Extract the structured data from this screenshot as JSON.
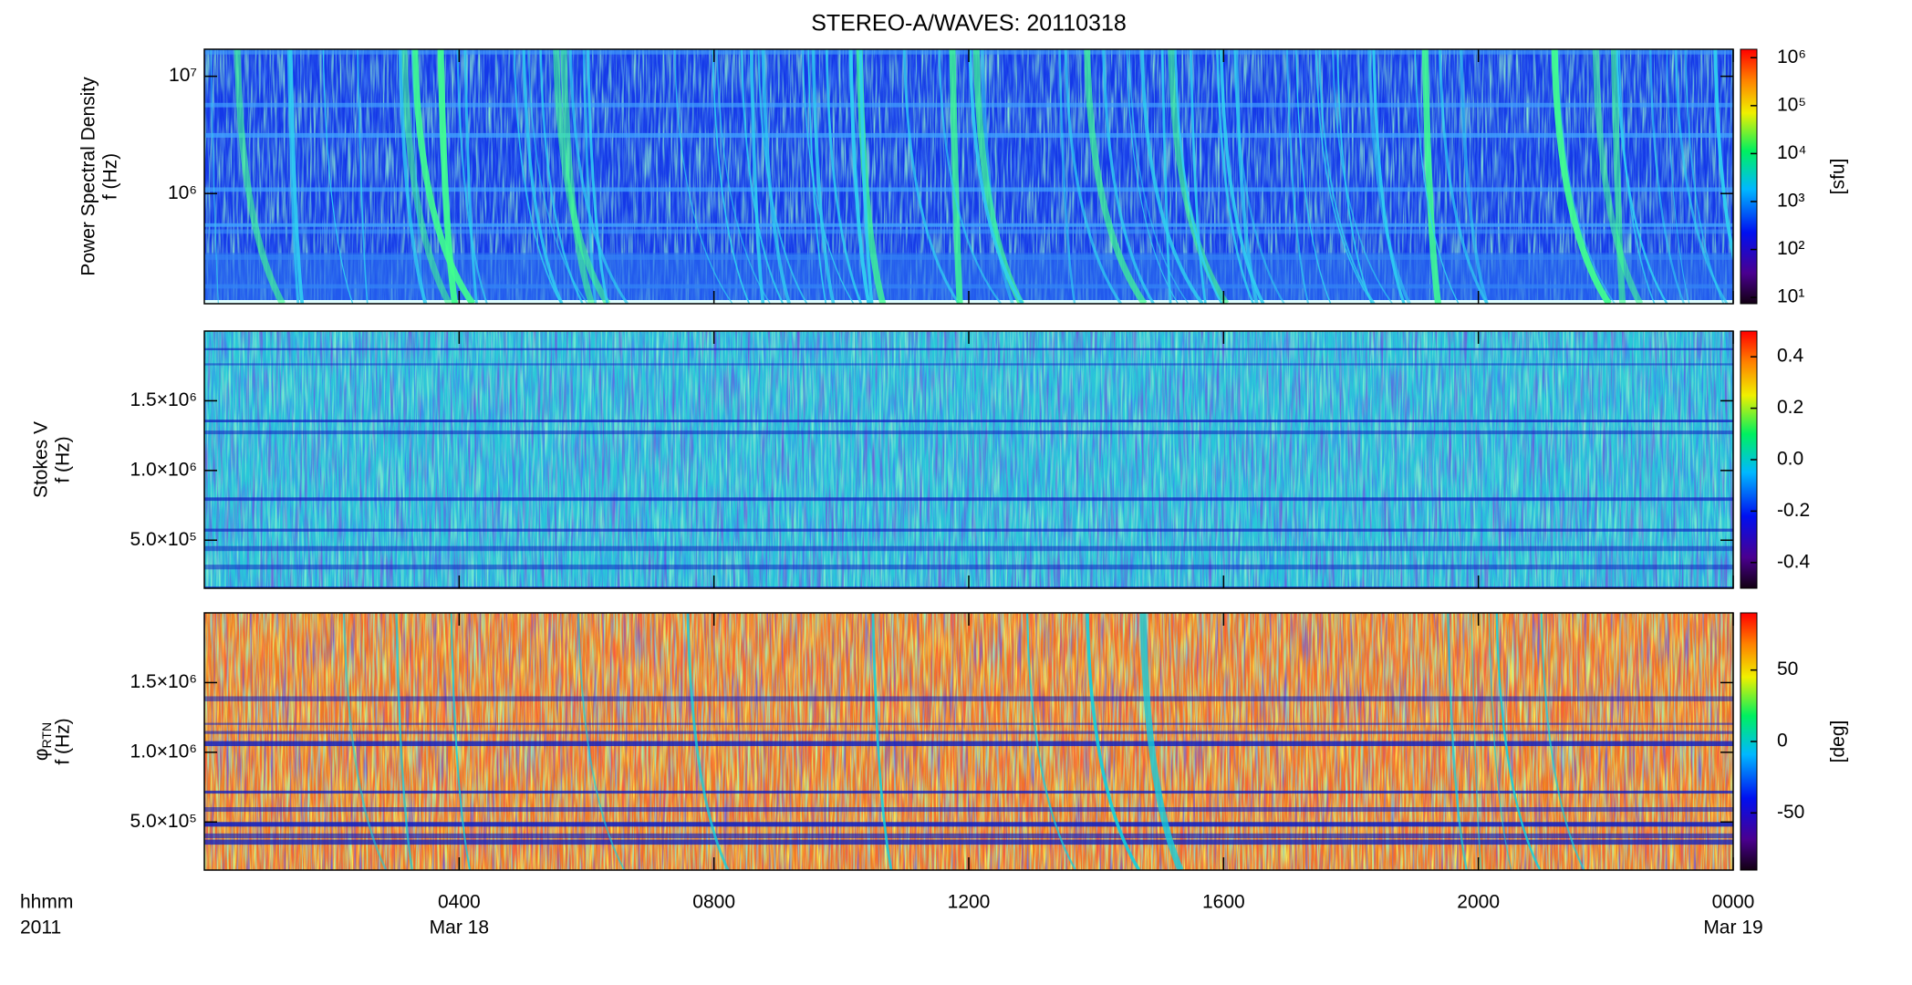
{
  "chart_data": {
    "type": "heatmap_stack",
    "title": "STEREO-A/WAVES: 20110318",
    "xlim": [
      0,
      24
    ],
    "xticks": [
      {
        "value": 4,
        "label": "0400"
      },
      {
        "value": 8,
        "label": "0800"
      },
      {
        "value": 12,
        "label": "1200"
      },
      {
        "value": 16,
        "label": "1600"
      },
      {
        "value": 20,
        "label": "2000"
      },
      {
        "value": 24,
        "label": "0000"
      }
    ],
    "date_ticks": [
      {
        "value": 4,
        "label": "Mar 18"
      },
      {
        "value": 24,
        "label": "Mar 19"
      }
    ],
    "x_format_label": "hhmm",
    "year_label": "2011",
    "panels": [
      {
        "type": "heatmap",
        "ylabel": [
          "Power Spectral Density",
          "f (Hz)"
        ],
        "ylog": true,
        "ylim": [
          115000,
          17000000
        ],
        "yticks": [
          {
            "value": 1000000,
            "label": "10⁶"
          },
          {
            "value": 10000000,
            "label": "10⁷"
          }
        ],
        "colorbar": {
          "log": true,
          "clim": [
            7.4,
            1500000
          ],
          "label": "[sfu]",
          "ticks": [
            {
              "value": 10,
              "label": "10¹"
            },
            {
              "value": 100,
              "label": "10²"
            },
            {
              "value": 1000,
              "label": "10³"
            },
            {
              "value": 10000,
              "label": "10⁴"
            },
            {
              "value": 100000,
              "label": "10⁵"
            },
            {
              "value": 1000000,
              "label": "10⁶"
            }
          ]
        }
      },
      {
        "type": "heatmap",
        "ylabel": [
          "Stokes V",
          "f (Hz)"
        ],
        "ylog": false,
        "ylim": [
          155000,
          2000000
        ],
        "yticks": [
          {
            "value": 500000,
            "label": "5.0×10⁵"
          },
          {
            "value": 1000000,
            "label": "1.0×10⁶"
          },
          {
            "value": 1500000,
            "label": "1.5×10⁶"
          }
        ],
        "colorbar": {
          "log": false,
          "clim": [
            -0.5,
            0.5
          ],
          "ticks": [
            -0.4,
            -0.2,
            {
              "value": 0,
              "label": "0.0"
            },
            0.2,
            0.4
          ]
        }
      },
      {
        "type": "heatmap",
        "ylabel_symbol": "φ",
        "ylabel_subscript": "RTN",
        "ylabel": [
          "f (Hz)"
        ],
        "ylog": false,
        "ylim": [
          155000,
          2000000
        ],
        "yticks": [
          {
            "value": 500000,
            "label": "5.0×10⁵"
          },
          {
            "value": 1000000,
            "label": "1.0×10⁶"
          },
          {
            "value": 1500000,
            "label": "1.5×10⁶"
          }
        ],
        "colorbar": {
          "log": false,
          "clim": [
            -90,
            90
          ],
          "label": "[deg]",
          "ticks": [
            -50,
            0,
            50
          ]
        }
      }
    ]
  }
}
